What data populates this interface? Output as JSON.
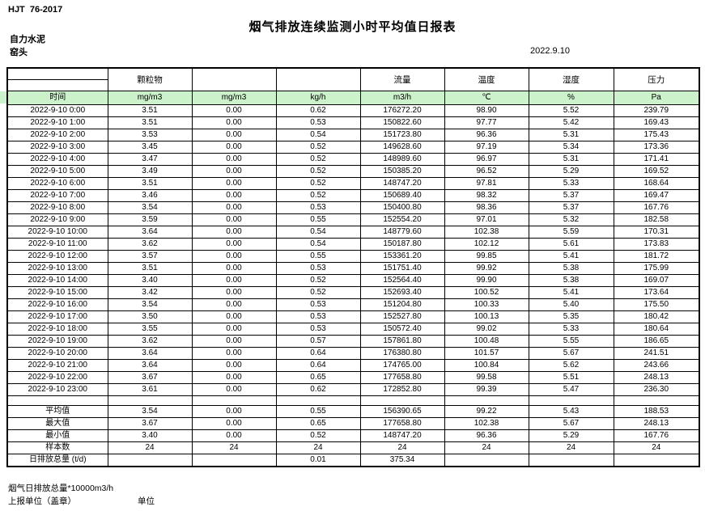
{
  "header": {
    "standard": "HJT  76-2017",
    "title": "烟气排放连续监测小时平均值日报表",
    "company": "自力水泥",
    "station": "窑头",
    "date": "2022.9.10"
  },
  "table": {
    "time_header": "时间",
    "groups": [
      "颗粒物",
      "",
      "",
      "流量",
      "温度",
      "湿度",
      "压力"
    ],
    "units": [
      "mg/m3",
      "mg/m3",
      "kg/h",
      "m3/h",
      "℃",
      "%",
      "Pa"
    ],
    "rows": [
      {
        "time": "2022-9-10 0:00",
        "values": [
          "3.51",
          "0.00",
          "0.62",
          "176272.20",
          "98.90",
          "5.52",
          "239.79"
        ]
      },
      {
        "time": "2022-9-10 1:00",
        "values": [
          "3.51",
          "0.00",
          "0.53",
          "150822.60",
          "97.77",
          "5.42",
          "169.43"
        ]
      },
      {
        "time": "2022-9-10 2:00",
        "values": [
          "3.53",
          "0.00",
          "0.54",
          "151723.80",
          "96.36",
          "5.31",
          "175.43"
        ]
      },
      {
        "time": "2022-9-10 3:00",
        "values": [
          "3.45",
          "0.00",
          "0.52",
          "149628.60",
          "97.19",
          "5.34",
          "173.36"
        ]
      },
      {
        "time": "2022-9-10 4:00",
        "values": [
          "3.47",
          "0.00",
          "0.52",
          "148989.60",
          "96.97",
          "5.31",
          "171.41"
        ]
      },
      {
        "time": "2022-9-10 5:00",
        "values": [
          "3.49",
          "0.00",
          "0.52",
          "150385.20",
          "96.52",
          "5.29",
          "169.52"
        ]
      },
      {
        "time": "2022-9-10 6:00",
        "values": [
          "3.51",
          "0.00",
          "0.52",
          "148747.20",
          "97.81",
          "5.33",
          "168.64"
        ]
      },
      {
        "time": "2022-9-10 7:00",
        "values": [
          "3.46",
          "0.00",
          "0.52",
          "150689.40",
          "98.32",
          "5.37",
          "169.47"
        ]
      },
      {
        "time": "2022-9-10 8:00",
        "values": [
          "3.54",
          "0.00",
          "0.53",
          "150400.80",
          "98.36",
          "5.37",
          "167.76"
        ]
      },
      {
        "time": "2022-9-10 9:00",
        "values": [
          "3.59",
          "0.00",
          "0.55",
          "152554.20",
          "97.01",
          "5.32",
          "182.58"
        ]
      },
      {
        "time": "2022-9-10 10:00",
        "values": [
          "3.64",
          "0.00",
          "0.54",
          "148779.60",
          "102.38",
          "5.59",
          "170.31"
        ]
      },
      {
        "time": "2022-9-10 11:00",
        "values": [
          "3.62",
          "0.00",
          "0.54",
          "150187.80",
          "102.12",
          "5.61",
          "173.83"
        ]
      },
      {
        "time": "2022-9-10 12:00",
        "values": [
          "3.57",
          "0.00",
          "0.55",
          "153361.20",
          "99.85",
          "5.41",
          "181.72"
        ]
      },
      {
        "time": "2022-9-10 13:00",
        "values": [
          "3.51",
          "0.00",
          "0.53",
          "151751.40",
          "99.92",
          "5.38",
          "175.99"
        ]
      },
      {
        "time": "2022-9-10 14:00",
        "values": [
          "3.40",
          "0.00",
          "0.52",
          "152564.40",
          "99.90",
          "5.38",
          "169.07"
        ]
      },
      {
        "time": "2022-9-10 15:00",
        "values": [
          "3.42",
          "0.00",
          "0.52",
          "152693.40",
          "100.52",
          "5.41",
          "173.64"
        ]
      },
      {
        "time": "2022-9-10 16:00",
        "values": [
          "3.54",
          "0.00",
          "0.53",
          "151204.80",
          "100.33",
          "5.40",
          "175.50"
        ]
      },
      {
        "time": "2022-9-10 17:00",
        "values": [
          "3.50",
          "0.00",
          "0.53",
          "152527.80",
          "100.13",
          "5.35",
          "180.42"
        ]
      },
      {
        "time": "2022-9-10 18:00",
        "values": [
          "3.55",
          "0.00",
          "0.53",
          "150572.40",
          "99.02",
          "5.33",
          "180.64"
        ]
      },
      {
        "time": "2022-9-10 19:00",
        "values": [
          "3.62",
          "0.00",
          "0.57",
          "157861.80",
          "100.48",
          "5.55",
          "186.65"
        ]
      },
      {
        "time": "2022-9-10 20:00",
        "values": [
          "3.64",
          "0.00",
          "0.64",
          "176380.80",
          "101.57",
          "5.67",
          "241.51"
        ]
      },
      {
        "time": "2022-9-10 21:00",
        "values": [
          "3.64",
          "0.00",
          "0.64",
          "174765.00",
          "100.84",
          "5.62",
          "243.66"
        ]
      },
      {
        "time": "2022-9-10 22:00",
        "values": [
          "3.67",
          "0.00",
          "0.65",
          "177658.80",
          "99.58",
          "5.51",
          "248.13"
        ]
      },
      {
        "time": "2022-9-10 23:00",
        "values": [
          "3.61",
          "0.00",
          "0.62",
          "172852.80",
          "99.39",
          "5.47",
          "236.30"
        ]
      }
    ],
    "summary": [
      {
        "label": "平均值",
        "values": [
          "3.54",
          "0.00",
          "0.55",
          "156390.65",
          "99.22",
          "5.43",
          "188.53"
        ]
      },
      {
        "label": "最大值",
        "values": [
          "3.67",
          "0.00",
          "0.65",
          "177658.80",
          "102.38",
          "5.67",
          "248.13"
        ]
      },
      {
        "label": "最小值",
        "values": [
          "3.40",
          "0.00",
          "0.52",
          "148747.20",
          "96.36",
          "5.29",
          "167.76"
        ]
      },
      {
        "label": "样本数",
        "values": [
          "24",
          "24",
          "24",
          "24",
          "24",
          "24",
          "24"
        ]
      },
      {
        "label": "日排放总量 (t/d)",
        "values": [
          "",
          "",
          "0.01",
          "375.34",
          "",
          "",
          ""
        ]
      }
    ]
  },
  "footer": {
    "note": "烟气日排放总量*10000m3/h",
    "report_unit": "上报单位（盖章）",
    "unit_label": "单位"
  },
  "colors": {
    "header_green": "#ccf2cc",
    "border": "#000000"
  }
}
